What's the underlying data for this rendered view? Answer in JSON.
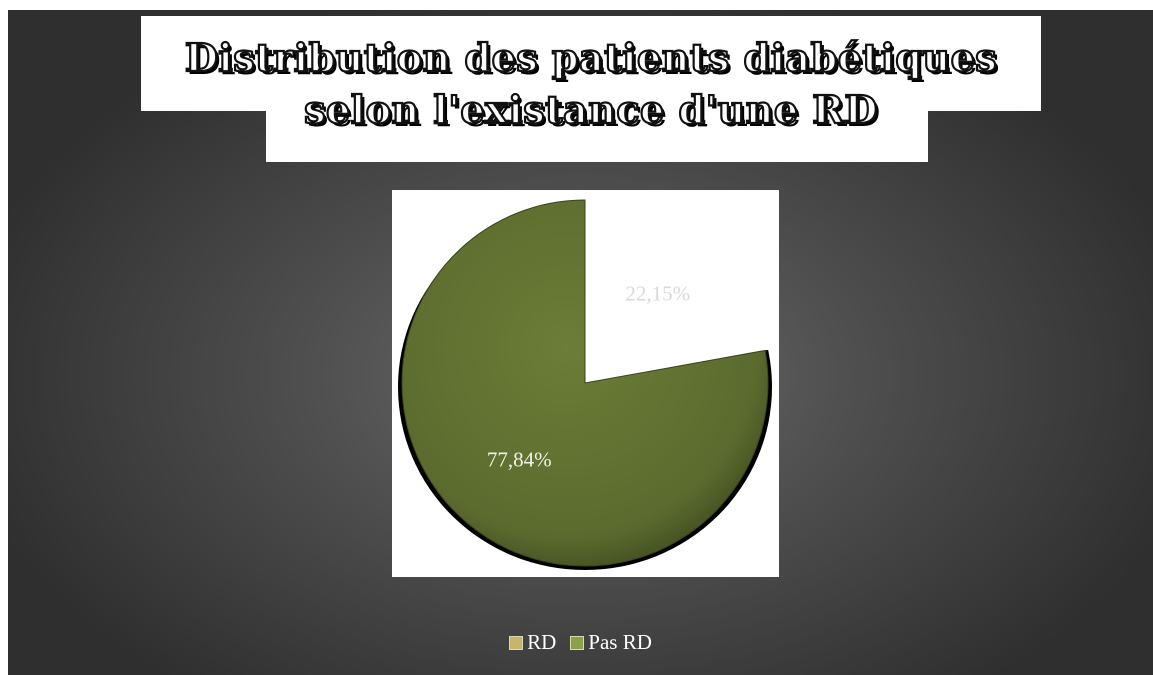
{
  "title": "Distribution des patients diabétiques selon l'existance d'une RD",
  "colors": {
    "background": "#4a4a4a",
    "slice_pas_rd": "#5b6b2f",
    "slice_rd": "#ffffff",
    "swatch_rd": "#c8b46a",
    "swatch_pas_rd": "#8aa04a"
  },
  "chart_data": {
    "type": "pie",
    "title": "Distribution des patients diabétiques selon l'existance d'une RD",
    "categories": [
      "RD",
      "Pas RD"
    ],
    "values": [
      22.15,
      77.84
    ],
    "labels": [
      "22,15%",
      "77,84%"
    ],
    "legend": [
      "RD",
      "Pas RD"
    ],
    "legend_position": "bottom"
  }
}
